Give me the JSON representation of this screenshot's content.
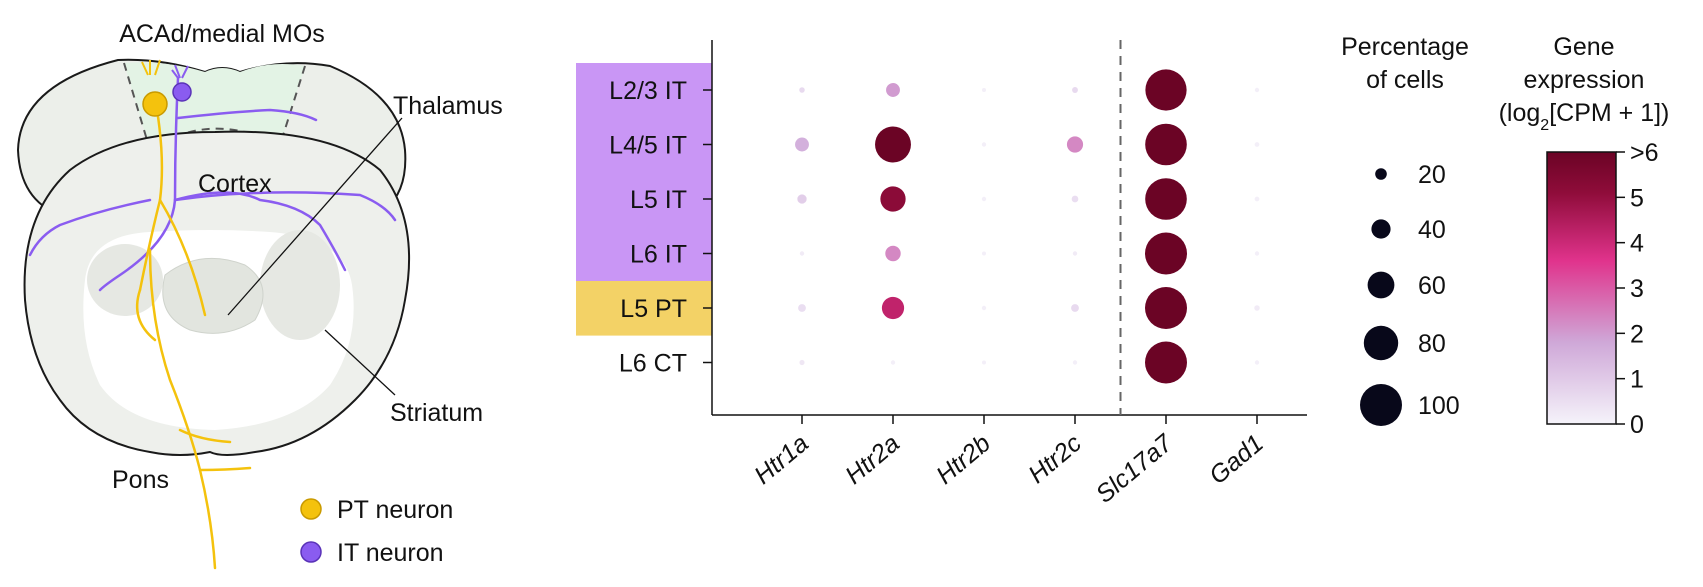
{
  "diagram": {
    "title": "ACAd/medial MOs",
    "labels": {
      "thalamus": "Thalamus",
      "cortex": "Cortex",
      "striatum": "Striatum",
      "pons": "Pons"
    },
    "legend": [
      {
        "label": "PT neuron",
        "color": "#f4c20d"
      },
      {
        "label": "IT neuron",
        "color": "#8a5cf0"
      }
    ],
    "colors": {
      "pt": "#f4c20d",
      "it": "#8a5cf0"
    }
  },
  "chart_data": {
    "type": "dotplot",
    "rows": [
      "L2/3 IT",
      "L4/5 IT",
      "L5 IT",
      "L6 IT",
      "L5 PT",
      "L6 CT"
    ],
    "row_band_colors": [
      "#c996f5",
      "#c996f5",
      "#c996f5",
      "#c996f5",
      "#f3d266",
      "#ffffff"
    ],
    "columns": [
      "Htr1a",
      "Htr2a",
      "Htr2b",
      "Htr2c",
      "Slc17a7",
      "Gad1"
    ],
    "divider_after_column": "Htr2c",
    "percentage": [
      [
        4,
        26,
        0,
        5,
        98,
        1
      ],
      [
        26,
        84,
        1,
        32,
        99,
        2
      ],
      [
        14,
        56,
        1,
        7,
        99,
        2
      ],
      [
        1,
        30,
        0,
        1,
        100,
        1
      ],
      [
        10,
        48,
        1,
        10,
        100,
        4
      ],
      [
        3,
        1,
        0,
        1,
        100,
        1
      ]
    ],
    "expression": [
      [
        0.6,
        2.0,
        0.1,
        0.6,
        6.5,
        0.1
      ],
      [
        1.6,
        6.5,
        0.1,
        2.3,
        6.5,
        0.1
      ],
      [
        0.9,
        5.2,
        0.1,
        0.5,
        6.5,
        0.1
      ],
      [
        0.2,
        2.3,
        0.1,
        0.2,
        6.5,
        0.1
      ],
      [
        0.5,
        4.2,
        0.1,
        0.6,
        6.5,
        0.2
      ],
      [
        0.3,
        0.1,
        0.1,
        0.1,
        6.5,
        0.1
      ]
    ],
    "size_legend": {
      "title_line1": "Percentage",
      "title_line2": "of cells",
      "values": [
        "20",
        "40",
        "60",
        "80",
        "100"
      ]
    },
    "color_legend": {
      "title_line1": "Gene",
      "title_line2": "expression",
      "title_line3_pre": "(log",
      "title_line3_sub": "2",
      "title_line3_post": "[CPM + 1])",
      "ticks": [
        "0",
        "1",
        "2",
        "3",
        "4",
        "5",
        ">6"
      ],
      "scale_max": 6,
      "colors": [
        "#f5f3fa",
        "#cfa8d8",
        "#e0338c",
        "#8f0c3a",
        "#6b0425"
      ]
    }
  }
}
